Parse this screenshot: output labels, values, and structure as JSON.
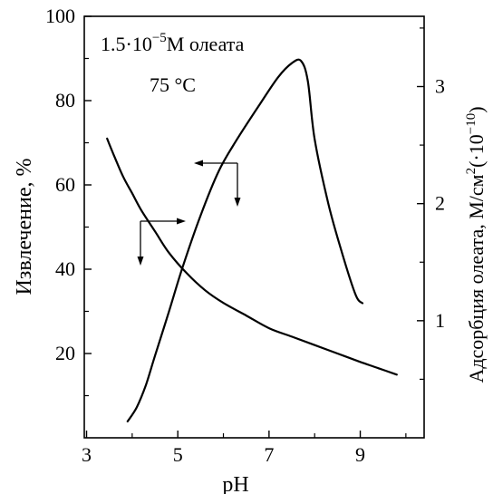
{
  "chart_data": {
    "type": "line",
    "annotation": {
      "concentration_prefix": "1.5·10",
      "concentration_exp": "−5",
      "concentration_suffix": "M олеата",
      "temperature": "75 °C"
    },
    "xlabel": "pH",
    "ylabel_left": "Извлечение, %",
    "ylabel_right_main": "Адсорбция олеата, М/см",
    "ylabel_right_sup1": "2",
    "ylabel_right_mid": "(·10",
    "ylabel_right_sup2": "−10",
    "ylabel_right_end": ")",
    "xlim": [
      2.95,
      10.4
    ],
    "ylim_left": [
      0,
      100
    ],
    "ylim_right": [
      0,
      3.6
    ],
    "x_ticks": [
      "3",
      "5",
      "7",
      "9"
    ],
    "x_tick_values": [
      3,
      5,
      7,
      9
    ],
    "x_minor_ticks": [
      4,
      6,
      8,
      10
    ],
    "y_left_ticks": [
      "20",
      "40",
      "60",
      "80",
      "100"
    ],
    "y_left_tick_values": [
      20,
      40,
      60,
      80,
      100
    ],
    "y_right_ticks": [
      "1",
      "2",
      "3"
    ],
    "y_right_tick_values": [
      1,
      2,
      3
    ],
    "series": [
      {
        "axis": "left",
        "points": [
          [
            3.45,
            71
          ],
          [
            3.6,
            67
          ],
          [
            3.8,
            62
          ],
          [
            4.0,
            58
          ],
          [
            4.2,
            54
          ],
          [
            4.5,
            49
          ],
          [
            4.8,
            44
          ],
          [
            5.2,
            39
          ],
          [
            5.6,
            35
          ],
          [
            6.0,
            32
          ],
          [
            6.5,
            29
          ],
          [
            7.0,
            26
          ],
          [
            7.5,
            24
          ],
          [
            8.0,
            22
          ],
          [
            8.5,
            20
          ],
          [
            9.0,
            18
          ],
          [
            9.4,
            16.5
          ],
          [
            9.8,
            15
          ]
        ]
      },
      {
        "axis": "right",
        "points": [
          [
            3.9,
            0.14
          ],
          [
            4.1,
            0.26
          ],
          [
            4.3,
            0.45
          ],
          [
            4.5,
            0.7
          ],
          [
            4.8,
            1.07
          ],
          [
            5.1,
            1.45
          ],
          [
            5.5,
            1.9
          ],
          [
            5.9,
            2.28
          ],
          [
            6.3,
            2.55
          ],
          [
            6.8,
            2.85
          ],
          [
            7.2,
            3.08
          ],
          [
            7.5,
            3.2
          ],
          [
            7.7,
            3.22
          ],
          [
            7.85,
            3.05
          ],
          [
            8.0,
            2.55
          ],
          [
            8.3,
            2.0
          ],
          [
            8.6,
            1.58
          ],
          [
            8.9,
            1.22
          ],
          [
            9.05,
            1.15
          ]
        ]
      }
    ]
  }
}
